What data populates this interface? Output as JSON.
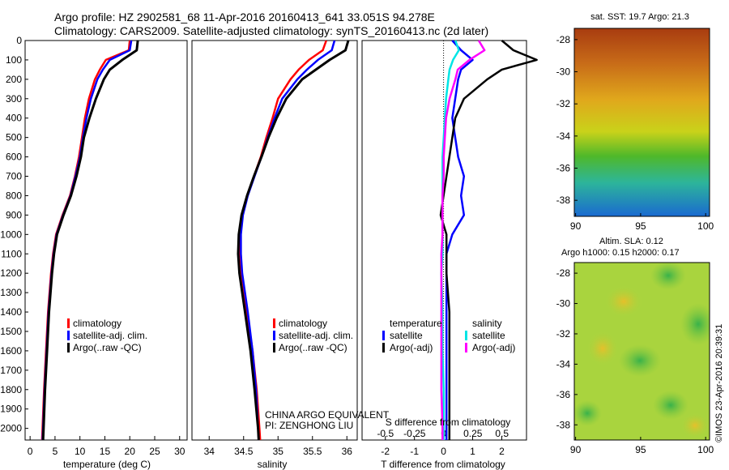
{
  "title": {
    "line1": "Argo profile: HZ 2902581_68 11-Apr-2016 20160413_641 33.051S 94.278E",
    "line2": "Climatology: CARS2009. Satellite-adjusted climatology: synTS_20160413.nc (2d later)"
  },
  "colors": {
    "climatology": "#ff0000",
    "satellite": "#0000ff",
    "argo": "#000000",
    "sat_salinity": "#00e5e5",
    "argo_salinity": "#ff00ff"
  },
  "depth_axis": {
    "ticks": [
      "0",
      "100",
      "200",
      "300",
      "400",
      "500",
      "600",
      "700",
      "800",
      "900",
      "1000",
      "1100",
      "1200",
      "1300",
      "1400",
      "1500",
      "1600",
      "1700",
      "1800",
      "1900",
      "2000"
    ],
    "range": [
      0,
      2060
    ],
    "inverted": true
  },
  "legend_profile": {
    "items": [
      "climatology",
      "satellite-adj. clim.",
      "Argo(..raw -QC)"
    ]
  },
  "legend_diff": {
    "temperature_head": "temperature",
    "salinity_head": "salinity",
    "items": [
      "satellite",
      "Argo(-adj)",
      "satellite",
      "Argo(-adj)"
    ]
  },
  "credit": {
    "line1": "CHINA ARGO EQUIVALENT",
    "line2": "PI: ZENGHONG LIU"
  },
  "maps": {
    "sst_title": "sat. SST: 19.7 Argo: 21.3",
    "sla_title1": "Altim. SLA: 0.12",
    "sla_title2": "Argo h1000: 0.15 h2000: 0.17",
    "lat_ticks": [
      "-28",
      "-30",
      "-32",
      "-34",
      "-36",
      "-38"
    ],
    "lon_ticks": [
      "90",
      "95",
      "100"
    ],
    "lat_range": [
      -39,
      -27.3
    ],
    "lon_range": [
      89.9,
      100.3
    ]
  },
  "stamp": "©IMOS 23-Apr-2016 20:39:31",
  "chart_data": [
    {
      "type": "line",
      "name": "temperature",
      "xlabel": "temperature (deg C)",
      "ylabel": "",
      "xlim": [
        -1,
        31.5
      ],
      "ylim": [
        2060,
        0
      ],
      "xticks": [
        "0",
        "5",
        "10",
        "15",
        "20",
        "25",
        "30"
      ],
      "depth": [
        0,
        50,
        100,
        150,
        200,
        300,
        400,
        500,
        600,
        700,
        800,
        900,
        1000,
        1100,
        1200,
        1400,
        1600,
        1800,
        2000,
        2060
      ],
      "series": [
        {
          "name": "climatology",
          "values": [
            20.0,
            19.8,
            15.2,
            14.0,
            13.0,
            11.8,
            11.0,
            10.4,
            9.8,
            9.0,
            8.0,
            6.5,
            5.2,
            4.6,
            4.2,
            3.6,
            3.2,
            2.8,
            2.5,
            2.4
          ]
        },
        {
          "name": "satellite-adj. clim.",
          "values": [
            20.3,
            20.0,
            16.0,
            14.6,
            13.5,
            12.2,
            11.3,
            10.6,
            10.0,
            9.1,
            8.1,
            6.6,
            5.3,
            4.7,
            4.3,
            3.7,
            3.3,
            2.9,
            2.6,
            2.5
          ]
        },
        {
          "name": "Argo(..raw -QC)",
          "values": [
            21.6,
            21.4,
            18.5,
            16.0,
            14.8,
            13.2,
            11.9,
            10.8,
            10.2,
            9.3,
            8.2,
            6.7,
            5.4,
            4.8,
            4.4,
            3.8,
            3.4,
            3.0,
            2.7,
            2.6
          ]
        }
      ]
    },
    {
      "type": "line",
      "name": "salinity",
      "xlabel": "salinity",
      "ylabel": "",
      "xlim": [
        33.75,
        36.15
      ],
      "ylim": [
        2060,
        0
      ],
      "xticks": [
        "34",
        "34.5",
        "35",
        "35.5",
        "36"
      ],
      "depth": [
        0,
        50,
        100,
        150,
        200,
        300,
        400,
        500,
        600,
        700,
        800,
        900,
        1000,
        1100,
        1200,
        1400,
        1600,
        1800,
        2000,
        2060
      ],
      "series": [
        {
          "name": "climatology",
          "values": [
            35.7,
            35.65,
            35.45,
            35.3,
            35.18,
            35.0,
            34.92,
            34.83,
            34.75,
            34.65,
            34.55,
            34.48,
            34.45,
            34.45,
            34.47,
            34.55,
            34.63,
            34.69,
            34.73,
            34.74
          ]
        },
        {
          "name": "satellite-adj. clim.",
          "values": [
            35.82,
            35.78,
            35.58,
            35.42,
            35.28,
            35.06,
            34.95,
            34.85,
            34.76,
            34.66,
            34.56,
            34.49,
            34.46,
            34.46,
            34.48,
            34.56,
            34.63,
            34.68,
            34.71,
            34.72
          ]
        },
        {
          "name": "Argo(..raw -QC)",
          "values": [
            36.02,
            35.98,
            35.75,
            35.55,
            35.35,
            35.12,
            34.98,
            34.86,
            34.76,
            34.65,
            34.55,
            34.47,
            34.43,
            34.42,
            34.44,
            34.52,
            34.6,
            34.66,
            34.71,
            34.72
          ]
        }
      ]
    },
    {
      "type": "line",
      "name": "differences from climatology",
      "xlabel": "T difference from climatology",
      "xlabel2": "S difference from climatology",
      "xlim": [
        -2.8,
        2.85
      ],
      "xlim2": [
        -0.7,
        0.71
      ],
      "ylim": [
        2060,
        0
      ],
      "xticks": [
        "-2",
        "-1",
        "0",
        "1",
        "2"
      ],
      "xticks2": [
        "-0.5",
        "-0.25",
        "0",
        "0.25",
        "0.5"
      ],
      "depth": [
        0,
        50,
        100,
        150,
        200,
        300,
        400,
        500,
        600,
        700,
        800,
        900,
        1000,
        1100,
        1200,
        1400,
        1600,
        1800,
        2000,
        2060
      ],
      "series": [
        {
          "name": "temperature satellite",
          "values": [
            0.3,
            0.6,
            1.0,
            0.6,
            0.5,
            0.4,
            0.3,
            0.4,
            0.5,
            0.7,
            0.6,
            0.7,
            0.3,
            0.1,
            0.1,
            0.1,
            0.1,
            0.1,
            0.1,
            0.1
          ]
        },
        {
          "name": "temperature Argo(-adj)",
          "values": [
            2.0,
            2.4,
            3.2,
            2.0,
            1.5,
            0.7,
            0.4,
            0.3,
            0.2,
            0.1,
            0.0,
            -0.1,
            0.1,
            0.1,
            0.1,
            0.2,
            0.2,
            0.2,
            0.2,
            0.2
          ]
        },
        {
          "name": "salinity satellite",
          "values": [
            0.1,
            0.13,
            0.08,
            0.05,
            0.04,
            0.02,
            0.01,
            0.0,
            -0.01,
            -0.01,
            -0.01,
            -0.01,
            -0.01,
            -0.01,
            -0.02,
            -0.01,
            -0.01,
            0.0,
            0.0,
            0.0
          ]
        },
        {
          "name": "salinity Argo(-adj)",
          "values": [
            0.3,
            0.35,
            0.22,
            0.12,
            0.1,
            0.05,
            0.02,
            0.01,
            0.0,
            0.0,
            -0.01,
            -0.01,
            -0.01,
            -0.02,
            -0.02,
            -0.02,
            -0.02,
            -0.02,
            -0.01,
            -0.01
          ]
        }
      ]
    }
  ]
}
